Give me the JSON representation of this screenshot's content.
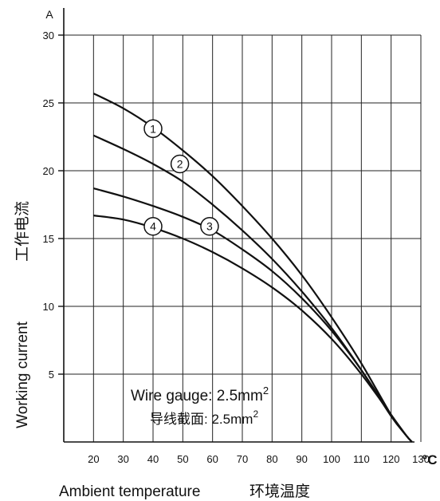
{
  "chart_data": {
    "type": "line",
    "y_unit": "A",
    "x_unit": "°C",
    "ylabel_cn": "工作电流",
    "ylabel_en": "Working current",
    "xlabel": "Ambient temperature",
    "xlabel_cn": "环境温度",
    "xlim": [
      10,
      130
    ],
    "ylim": [
      0,
      30
    ],
    "x_ticks": [
      20,
      30,
      40,
      50,
      60,
      70,
      80,
      90,
      100,
      110,
      120,
      130
    ],
    "y_ticks": [
      5,
      10,
      15,
      20,
      25,
      30
    ],
    "grid": true,
    "annotation": {
      "line1_label": "Wire gauge:",
      "line1_value": "2.5mm",
      "line2_label": "导线截面:",
      "line2_value": "2.5mm",
      "superscript": "2"
    },
    "series": [
      {
        "marker": "1",
        "marker_x": 40,
        "marker_y": 23.1,
        "x": [
          20,
          30,
          40,
          50,
          60,
          70,
          80,
          90,
          100,
          110,
          120,
          125,
          127
        ],
        "y": [
          25.7,
          24.6,
          23.2,
          21.5,
          19.6,
          17.4,
          15.0,
          12.3,
          9.2,
          5.8,
          2.0,
          0.5,
          0
        ]
      },
      {
        "marker": "2",
        "marker_x": 49,
        "marker_y": 20.5,
        "x": [
          20,
          30,
          40,
          50,
          60,
          70,
          80,
          90,
          100,
          110,
          120,
          125,
          127
        ],
        "y": [
          22.6,
          21.6,
          20.5,
          19.2,
          17.5,
          15.6,
          13.5,
          11.1,
          8.4,
          5.3,
          1.9,
          0.5,
          0
        ]
      },
      {
        "marker": "3",
        "marker_x": 59,
        "marker_y": 15.9,
        "x": [
          20,
          30,
          40,
          50,
          60,
          70,
          80,
          90,
          100,
          110,
          120,
          125,
          127
        ],
        "y": [
          18.7,
          18.1,
          17.4,
          16.6,
          15.6,
          14.2,
          12.6,
          10.6,
          8.2,
          5.3,
          2.0,
          0.5,
          0
        ]
      },
      {
        "marker": "4",
        "marker_x": 40,
        "marker_y": 15.9,
        "x": [
          20,
          30,
          40,
          50,
          60,
          70,
          80,
          90,
          100,
          110,
          120,
          125,
          127
        ],
        "y": [
          16.7,
          16.4,
          15.8,
          15.0,
          14.0,
          12.8,
          11.4,
          9.7,
          7.6,
          5.0,
          2.0,
          0.5,
          0
        ]
      }
    ]
  }
}
